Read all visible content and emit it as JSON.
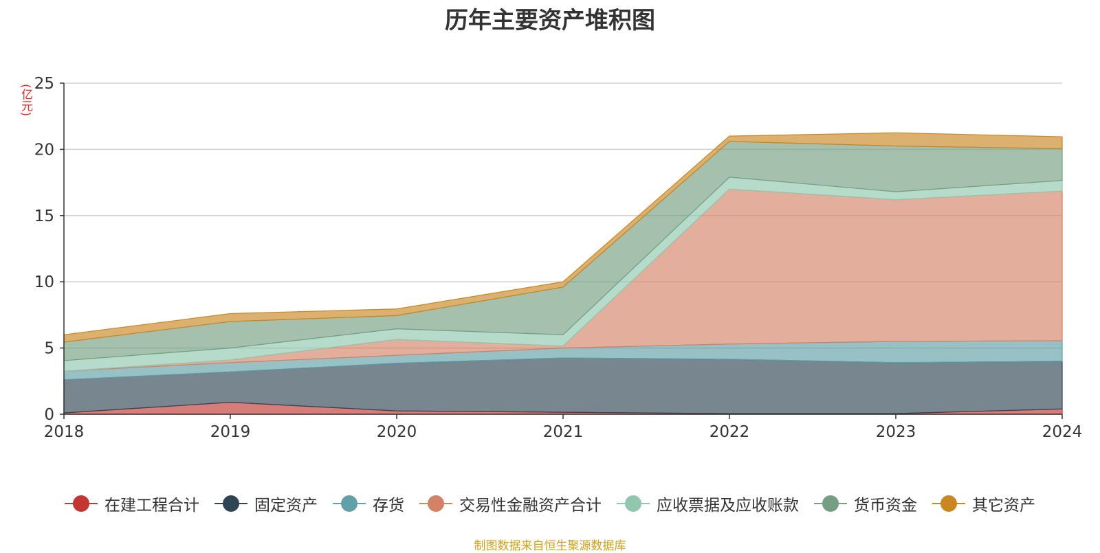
{
  "chart_data": {
    "type": "area",
    "stacked": true,
    "title": "历年主要资产堆积图",
    "unit_label": "(亿元)",
    "source": "制图数据来自恒生聚源数据库",
    "x": [
      "2018",
      "2019",
      "2020",
      "2021",
      "2022",
      "2023",
      "2024"
    ],
    "ylim": [
      0,
      25
    ],
    "yticks": [
      0,
      5,
      10,
      15,
      20,
      25
    ],
    "grid": true,
    "legend_position": "bottom",
    "series": [
      {
        "name": "在建工程合计",
        "color": "#c23531",
        "values": [
          0.1,
          0.9,
          0.25,
          0.15,
          0.05,
          0.05,
          0.4
        ]
      },
      {
        "name": "固定资产",
        "color": "#2f4554",
        "values": [
          2.5,
          2.3,
          3.6,
          4.1,
          4.1,
          3.85,
          3.6
        ]
      },
      {
        "name": "存货",
        "color": "#61a0a8",
        "values": [
          0.65,
          0.7,
          0.6,
          0.75,
          1.15,
          1.6,
          1.55
        ]
      },
      {
        "name": "交易性金融资产合计",
        "color": "#d48265",
        "values": [
          0.0,
          0.2,
          1.2,
          0.15,
          11.7,
          10.7,
          11.3
        ]
      },
      {
        "name": "应收票据及应收账款",
        "color": "#91c7ae",
        "values": [
          0.8,
          0.9,
          0.8,
          0.85,
          0.9,
          0.6,
          0.8
        ]
      },
      {
        "name": "货币资金",
        "color": "#749f83",
        "values": [
          1.4,
          2.0,
          1.0,
          3.6,
          2.7,
          3.45,
          2.4
        ]
      },
      {
        "name": "其它资产",
        "color": "#ca8622",
        "values": [
          0.55,
          0.6,
          0.5,
          0.4,
          0.4,
          1.0,
          0.9
        ]
      }
    ]
  }
}
